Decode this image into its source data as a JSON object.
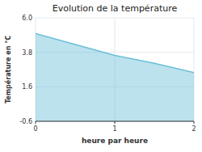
{
  "chart_data": {
    "type": "area",
    "title": "Evolution de la température",
    "xlabel": "heure par heure",
    "ylabel": "Température en °C",
    "x": [
      0,
      0.5,
      1.0,
      1.5,
      2.0
    ],
    "values": [
      5.0,
      4.3,
      3.6,
      3.1,
      2.5
    ],
    "color": "#6bbfd8",
    "xlim": [
      0,
      2
    ],
    "ylim": [
      -0.6,
      6.0
    ],
    "xticks": [
      0,
      1,
      2
    ],
    "yticks": [
      -0.6,
      1.6,
      3.8,
      {
        "value": 6.0,
        "label": "6.0"
      }
    ],
    "grid": true
  }
}
